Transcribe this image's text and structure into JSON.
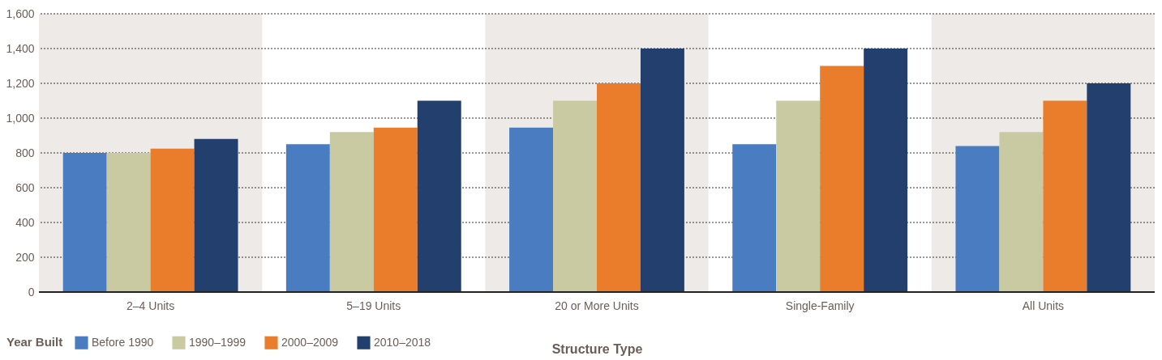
{
  "chart_data": {
    "type": "bar",
    "xlabel": "Structure Type",
    "legend_title": "Year Built",
    "categories": [
      "2–4 Units",
      "5–19 Units",
      "20 or More Units",
      "Single-Family",
      "All Units"
    ],
    "series": [
      {
        "name": "Before 1990",
        "color": "#4a7cc2",
        "values": [
          800,
          850,
          945,
          850,
          840
        ]
      },
      {
        "name": "1990–1999",
        "color": "#c9caa2",
        "values": [
          800,
          920,
          1100,
          1100,
          920
        ]
      },
      {
        "name": "2000–2009",
        "color": "#ea7d2b",
        "values": [
          825,
          945,
          1200,
          1300,
          1100
        ]
      },
      {
        "name": "2010–2018",
        "color": "#233f6e",
        "values": [
          880,
          1100,
          1400,
          1400,
          1200
        ]
      }
    ],
    "ylim": [
      0,
      1600
    ],
    "yticks": [
      0,
      200,
      400,
      600,
      800,
      {
        "value": 1000,
        "label": "1,000"
      },
      {
        "value": 1200,
        "label": "1,200"
      },
      {
        "value": 1400,
        "label": "1,400"
      },
      {
        "value": 1600,
        "label": "1,600"
      }
    ],
    "bands": [
      {
        "axis": "x",
        "from": "2–4 Units",
        "to": "2–4 Units",
        "color": "#edeae7"
      },
      {
        "axis": "x",
        "from": "20 or More Units",
        "to": "20 or More Units",
        "color": "#edeae7"
      },
      {
        "axis": "x",
        "from": "All Units",
        "to": "All Units",
        "color": "#edeae7"
      }
    ],
    "grid": "y",
    "legend": "bottom left"
  }
}
